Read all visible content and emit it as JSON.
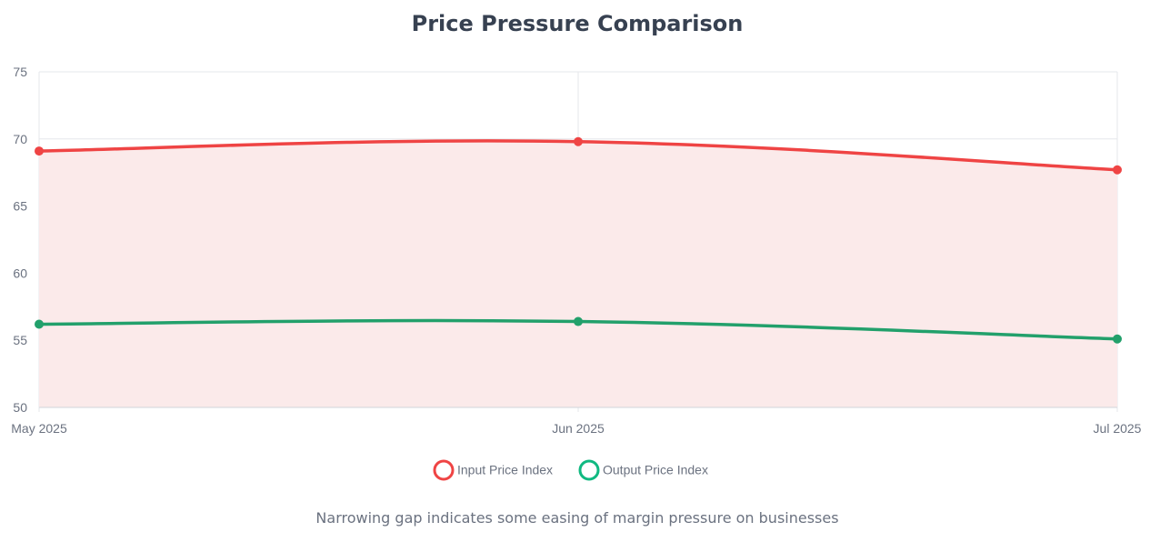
{
  "chart_data": {
    "type": "line",
    "title": "Price Pressure Comparison",
    "subtitle": "Narrowing gap indicates some easing of margin pressure on businesses",
    "categories": [
      "May 2025",
      "Jun 2025",
      "Jul 2025"
    ],
    "series": [
      {
        "name": "Input Price Index",
        "values": [
          69.1,
          69.8,
          67.7
        ],
        "color": "#ef4444",
        "fill": "#fbeaea"
      },
      {
        "name": "Output Price Index",
        "values": [
          56.2,
          56.4,
          55.1
        ],
        "color": "#22a06b",
        "legend_color": "#10b981"
      }
    ],
    "ylim": [
      50,
      75
    ],
    "yticks": [
      "50",
      "55",
      "60",
      "65",
      "70",
      "75"
    ],
    "grid": true,
    "legend_placement": "bottom",
    "xlabel": "",
    "ylabel": ""
  }
}
